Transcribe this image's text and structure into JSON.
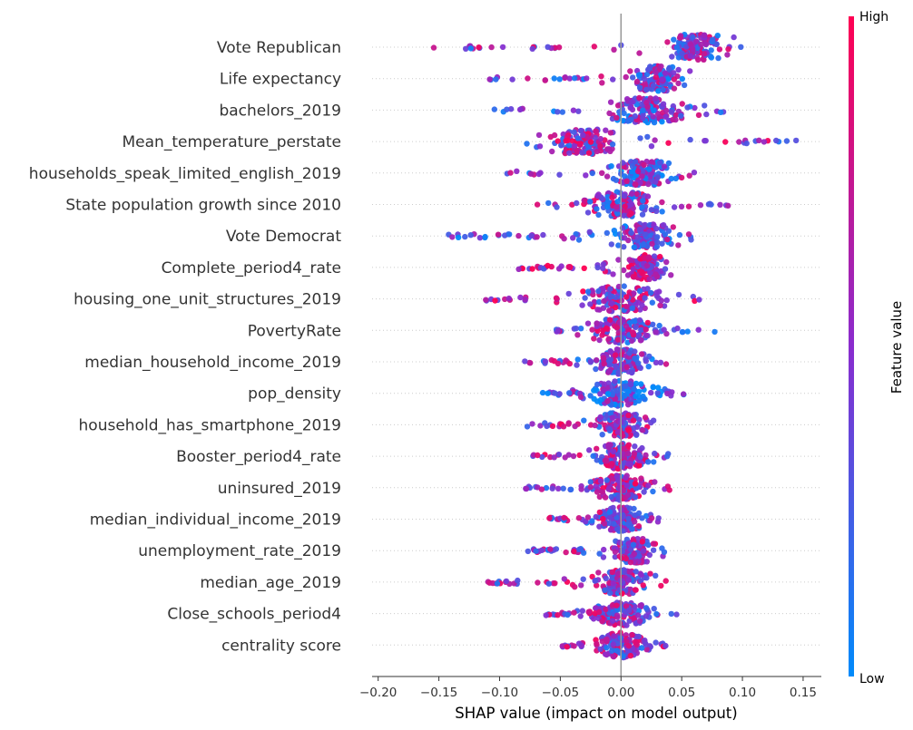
{
  "chart_data": {
    "type": "scatter",
    "subtype": "shap-beeswarm",
    "xlabel": "SHAP value (impact on model output)",
    "xlim": [
      -0.205,
      0.165
    ],
    "xticks": [
      -0.2,
      -0.15,
      -0.1,
      -0.05,
      0,
      0.05,
      0.1,
      0.15
    ],
    "xtick_labels": [
      "−0.20",
      "−0.15",
      "−0.10",
      "−0.05",
      "0.00",
      "0.05",
      "0.10",
      "0.15"
    ],
    "colorbar": {
      "title": "Feature value",
      "high_label": "High",
      "low_label": "Low",
      "high_color": "#ff0052",
      "mid_color": "#8a2cce",
      "low_color": "#008bfb"
    },
    "features": [
      {
        "name": "Vote Republican",
        "min": -0.19,
        "max": 0.1,
        "center": 0.06,
        "mean_color": 0.5
      },
      {
        "name": "Life expectancy",
        "min": -0.115,
        "max": 0.068,
        "center": 0.03,
        "mean_color": 0.45
      },
      {
        "name": "bachelors_2019",
        "min": -0.105,
        "max": 0.088,
        "center": 0.02,
        "mean_color": 0.4
      },
      {
        "name": "Mean_temperature_perstate",
        "min": -0.078,
        "max": 0.145,
        "center": -0.03,
        "mean_color": 0.55
      },
      {
        "name": "households_speak_limited_english_2019",
        "min": -0.095,
        "max": 0.062,
        "center": 0.02,
        "mean_color": 0.4
      },
      {
        "name": "State population growth since 2010",
        "min": -0.073,
        "max": 0.094,
        "center": 0.0,
        "mean_color": 0.5
      },
      {
        "name": "Vote Democrat",
        "min": -0.145,
        "max": 0.06,
        "center": 0.02,
        "mean_color": 0.4
      },
      {
        "name": "Complete_period4_rate",
        "min": -0.088,
        "max": 0.043,
        "center": 0.02,
        "mean_color": 0.6
      },
      {
        "name": "housing_one_unit_structures_2019",
        "min": -0.115,
        "max": 0.065,
        "center": 0.0,
        "mean_color": 0.55
      },
      {
        "name": "PovertyRate",
        "min": -0.055,
        "max": 0.078,
        "center": 0.0,
        "mean_color": 0.5
      },
      {
        "name": "median_household_income_2019",
        "min": -0.08,
        "max": 0.04,
        "center": 0.0,
        "mean_color": 0.45
      },
      {
        "name": "pop_density",
        "min": -0.07,
        "max": 0.058,
        "center": 0.0,
        "mean_color": 0.3
      },
      {
        "name": "household_has_smartphone_2019",
        "min": -0.08,
        "max": 0.035,
        "center": 0.0,
        "mean_color": 0.55
      },
      {
        "name": "Booster_period4_rate",
        "min": -0.078,
        "max": 0.04,
        "center": 0.0,
        "mean_color": 0.55
      },
      {
        "name": "uninsured_2019",
        "min": -0.08,
        "max": 0.04,
        "center": 0.0,
        "mean_color": 0.55
      },
      {
        "name": "median_individual_income_2019",
        "min": -0.06,
        "max": 0.037,
        "center": 0.0,
        "mean_color": 0.5
      },
      {
        "name": "unemployment_rate_2019",
        "min": -0.078,
        "max": 0.038,
        "center": 0.01,
        "mean_color": 0.5
      },
      {
        "name": "median_age_2019",
        "min": -0.11,
        "max": 0.04,
        "center": 0.0,
        "mean_color": 0.55
      },
      {
        "name": "Close_schools_period4",
        "min": -0.065,
        "max": 0.047,
        "center": 0.0,
        "mean_color": 0.5
      },
      {
        "name": "centrality score",
        "min": -0.05,
        "max": 0.037,
        "center": 0.0,
        "mean_color": 0.5
      }
    ]
  }
}
